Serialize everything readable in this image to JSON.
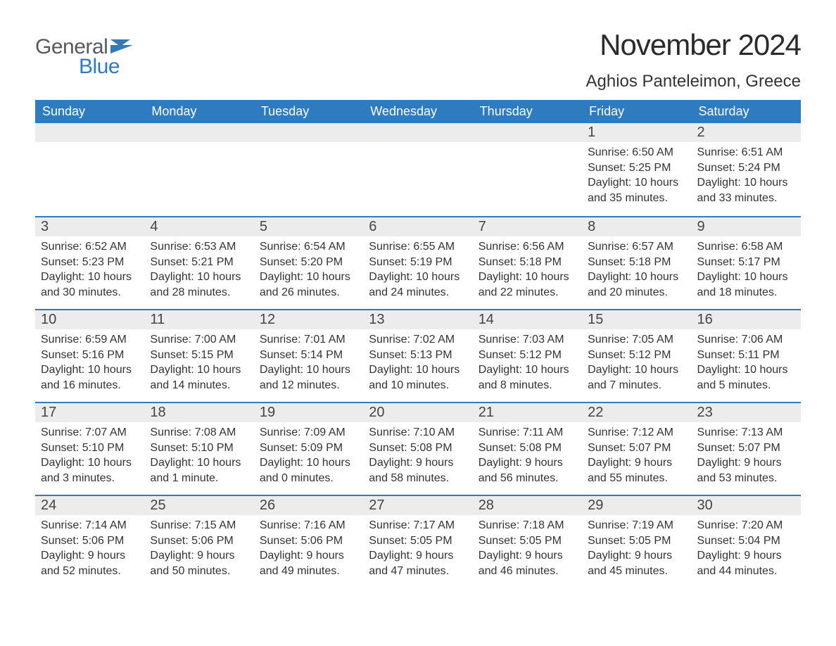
{
  "brand": {
    "part1": "General",
    "part2": "Blue",
    "part1_color": "#555a5e",
    "part2_color": "#2e7bbf"
  },
  "title": "November 2024",
  "location": "Aghios Panteleimon, Greece",
  "header_bg": "#2e7bbf",
  "daynum_bg": "#ececec",
  "week_border_color": "#2e7bbf",
  "background_color": "#ffffff",
  "text_color": "#333333",
  "title_fontsize": 42,
  "location_fontsize": 24,
  "dayheader_fontsize": 18,
  "daynum_fontsize": 20,
  "body_fontsize": 16,
  "day_headers": [
    "Sunday",
    "Monday",
    "Tuesday",
    "Wednesday",
    "Thursday",
    "Friday",
    "Saturday"
  ],
  "weeks": [
    [
      {
        "n": "",
        "sunrise": "",
        "sunset": "",
        "daylight": ""
      },
      {
        "n": "",
        "sunrise": "",
        "sunset": "",
        "daylight": ""
      },
      {
        "n": "",
        "sunrise": "",
        "sunset": "",
        "daylight": ""
      },
      {
        "n": "",
        "sunrise": "",
        "sunset": "",
        "daylight": ""
      },
      {
        "n": "",
        "sunrise": "",
        "sunset": "",
        "daylight": ""
      },
      {
        "n": "1",
        "sunrise": "6:50 AM",
        "sunset": "5:25 PM",
        "daylight": "10 hours and 35 minutes."
      },
      {
        "n": "2",
        "sunrise": "6:51 AM",
        "sunset": "5:24 PM",
        "daylight": "10 hours and 33 minutes."
      }
    ],
    [
      {
        "n": "3",
        "sunrise": "6:52 AM",
        "sunset": "5:23 PM",
        "daylight": "10 hours and 30 minutes."
      },
      {
        "n": "4",
        "sunrise": "6:53 AM",
        "sunset": "5:21 PM",
        "daylight": "10 hours and 28 minutes."
      },
      {
        "n": "5",
        "sunrise": "6:54 AM",
        "sunset": "5:20 PM",
        "daylight": "10 hours and 26 minutes."
      },
      {
        "n": "6",
        "sunrise": "6:55 AM",
        "sunset": "5:19 PM",
        "daylight": "10 hours and 24 minutes."
      },
      {
        "n": "7",
        "sunrise": "6:56 AM",
        "sunset": "5:18 PM",
        "daylight": "10 hours and 22 minutes."
      },
      {
        "n": "8",
        "sunrise": "6:57 AM",
        "sunset": "5:18 PM",
        "daylight": "10 hours and 20 minutes."
      },
      {
        "n": "9",
        "sunrise": "6:58 AM",
        "sunset": "5:17 PM",
        "daylight": "10 hours and 18 minutes."
      }
    ],
    [
      {
        "n": "10",
        "sunrise": "6:59 AM",
        "sunset": "5:16 PM",
        "daylight": "10 hours and 16 minutes."
      },
      {
        "n": "11",
        "sunrise": "7:00 AM",
        "sunset": "5:15 PM",
        "daylight": "10 hours and 14 minutes."
      },
      {
        "n": "12",
        "sunrise": "7:01 AM",
        "sunset": "5:14 PM",
        "daylight": "10 hours and 12 minutes."
      },
      {
        "n": "13",
        "sunrise": "7:02 AM",
        "sunset": "5:13 PM",
        "daylight": "10 hours and 10 minutes."
      },
      {
        "n": "14",
        "sunrise": "7:03 AM",
        "sunset": "5:12 PM",
        "daylight": "10 hours and 8 minutes."
      },
      {
        "n": "15",
        "sunrise": "7:05 AM",
        "sunset": "5:12 PM",
        "daylight": "10 hours and 7 minutes."
      },
      {
        "n": "16",
        "sunrise": "7:06 AM",
        "sunset": "5:11 PM",
        "daylight": "10 hours and 5 minutes."
      }
    ],
    [
      {
        "n": "17",
        "sunrise": "7:07 AM",
        "sunset": "5:10 PM",
        "daylight": "10 hours and 3 minutes."
      },
      {
        "n": "18",
        "sunrise": "7:08 AM",
        "sunset": "5:10 PM",
        "daylight": "10 hours and 1 minute."
      },
      {
        "n": "19",
        "sunrise": "7:09 AM",
        "sunset": "5:09 PM",
        "daylight": "10 hours and 0 minutes."
      },
      {
        "n": "20",
        "sunrise": "7:10 AM",
        "sunset": "5:08 PM",
        "daylight": "9 hours and 58 minutes."
      },
      {
        "n": "21",
        "sunrise": "7:11 AM",
        "sunset": "5:08 PM",
        "daylight": "9 hours and 56 minutes."
      },
      {
        "n": "22",
        "sunrise": "7:12 AM",
        "sunset": "5:07 PM",
        "daylight": "9 hours and 55 minutes."
      },
      {
        "n": "23",
        "sunrise": "7:13 AM",
        "sunset": "5:07 PM",
        "daylight": "9 hours and 53 minutes."
      }
    ],
    [
      {
        "n": "24",
        "sunrise": "7:14 AM",
        "sunset": "5:06 PM",
        "daylight": "9 hours and 52 minutes."
      },
      {
        "n": "25",
        "sunrise": "7:15 AM",
        "sunset": "5:06 PM",
        "daylight": "9 hours and 50 minutes."
      },
      {
        "n": "26",
        "sunrise": "7:16 AM",
        "sunset": "5:06 PM",
        "daylight": "9 hours and 49 minutes."
      },
      {
        "n": "27",
        "sunrise": "7:17 AM",
        "sunset": "5:05 PM",
        "daylight": "9 hours and 47 minutes."
      },
      {
        "n": "28",
        "sunrise": "7:18 AM",
        "sunset": "5:05 PM",
        "daylight": "9 hours and 46 minutes."
      },
      {
        "n": "29",
        "sunrise": "7:19 AM",
        "sunset": "5:05 PM",
        "daylight": "9 hours and 45 minutes."
      },
      {
        "n": "30",
        "sunrise": "7:20 AM",
        "sunset": "5:04 PM",
        "daylight": "9 hours and 44 minutes."
      }
    ]
  ],
  "labels": {
    "sunrise": "Sunrise: ",
    "sunset": "Sunset: ",
    "daylight": "Daylight: "
  }
}
